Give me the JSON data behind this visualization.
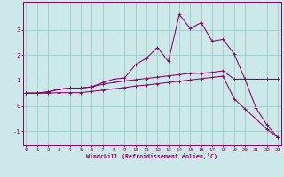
{
  "xlabel": "Windchill (Refroidissement éolien,°C)",
  "bg_color": "#cce8e8",
  "grid_color": "#99cccc",
  "line_color": "#880066",
  "x_ticks": [
    0,
    1,
    2,
    3,
    4,
    5,
    6,
    7,
    8,
    9,
    10,
    11,
    12,
    13,
    14,
    15,
    16,
    17,
    18,
    19,
    20,
    21,
    22,
    23
  ],
  "y_ticks": [
    -1,
    0,
    1,
    2,
    3
  ],
  "xlim": [
    -0.3,
    23.3
  ],
  "ylim": [
    -1.55,
    4.1
  ],
  "line1_y": [
    0.5,
    0.5,
    0.55,
    0.65,
    0.7,
    0.7,
    0.75,
    0.85,
    0.92,
    0.98,
    1.03,
    1.08,
    1.13,
    1.18,
    1.23,
    1.28,
    1.28,
    1.32,
    1.38,
    1.05,
    1.05,
    1.05,
    1.05,
    1.05
  ],
  "line2_y": [
    0.5,
    0.5,
    0.55,
    0.65,
    0.7,
    0.7,
    0.75,
    0.92,
    1.05,
    1.1,
    1.62,
    1.88,
    2.3,
    1.75,
    3.6,
    3.05,
    3.28,
    2.55,
    2.62,
    2.05,
    1.05,
    -0.08,
    -0.75,
    -1.25
  ],
  "line3_y": [
    0.5,
    0.5,
    0.5,
    0.52,
    0.52,
    0.52,
    0.57,
    0.62,
    0.67,
    0.72,
    0.78,
    0.82,
    0.87,
    0.92,
    0.97,
    1.02,
    1.07,
    1.12,
    1.17,
    0.28,
    -0.12,
    -0.52,
    -0.92,
    -1.25
  ]
}
